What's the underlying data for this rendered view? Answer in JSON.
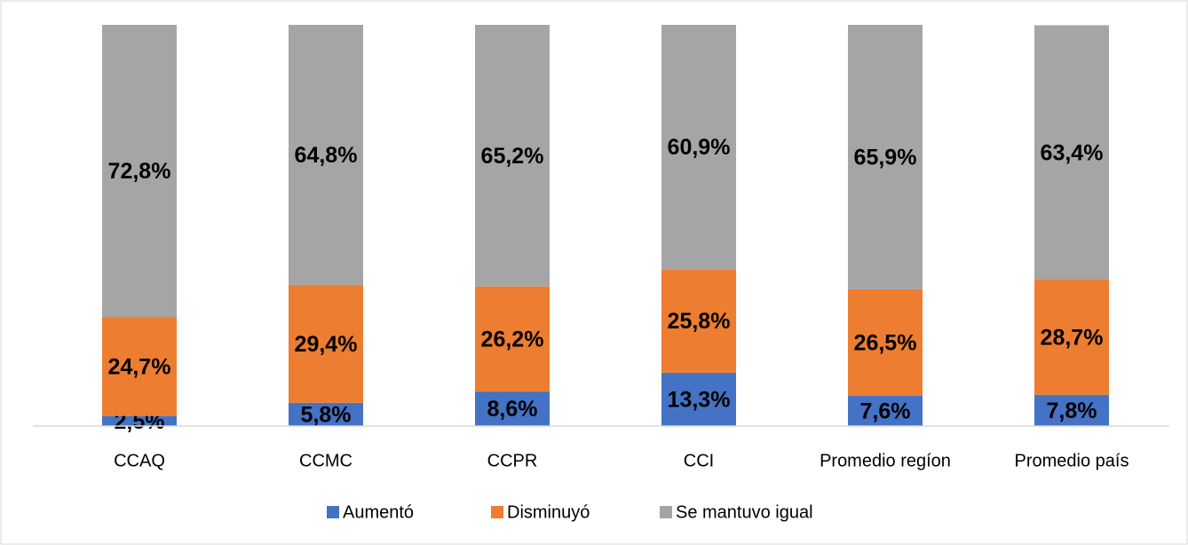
{
  "chart_data": {
    "type": "stacked_bar",
    "categories": [
      "CCAQ",
      "CCMC",
      "CCPR",
      "CCI",
      "Promedio regíon",
      "Promedio país"
    ],
    "series": [
      {
        "name": "Aumentó",
        "color": "#4472c4",
        "values": [
          2.5,
          5.8,
          8.6,
          13.3,
          7.6,
          7.8
        ],
        "value_labels": [
          "2,5%",
          "5,8%",
          "8,6%",
          "13,3%",
          "7,6%",
          "7,8%"
        ]
      },
      {
        "name": "Disminuyó",
        "color": "#ed7d31",
        "values": [
          24.7,
          29.4,
          26.2,
          25.8,
          26.5,
          28.7
        ],
        "value_labels": [
          "24,7%",
          "29,4%",
          "26,2%",
          "25,8%",
          "26,5%",
          "28,7%"
        ]
      },
      {
        "name": "Se mantuvo igual",
        "color": "#a5a5a5",
        "values": [
          72.8,
          64.8,
          65.2,
          60.9,
          65.9,
          63.4
        ],
        "value_labels": [
          "72,8%",
          "64,8%",
          "65,2%",
          "60,9%",
          "65,9%",
          "63,4%"
        ]
      }
    ],
    "ylim": [
      0,
      100
    ],
    "legend": "bottom"
  }
}
